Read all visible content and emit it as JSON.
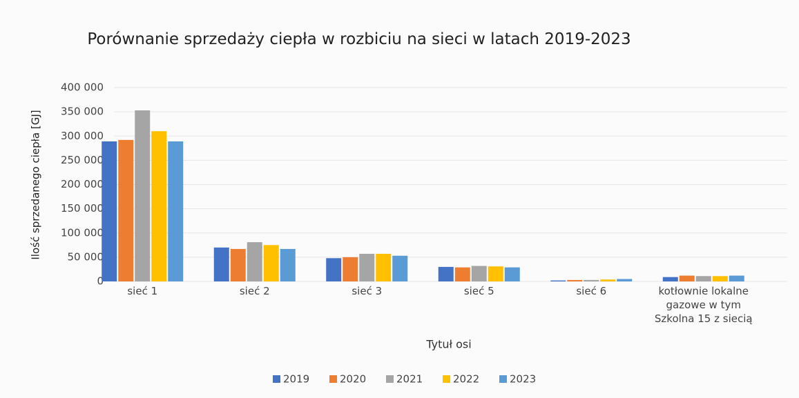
{
  "chart_data": {
    "type": "bar",
    "title": "Porównanie sprzedaży ciepła w rozbiciu na sieci w latach 2019-2023",
    "y_label": "Ilość sprzedanego ciepła [GJ]",
    "x_label": "Tytuł osi",
    "categories": [
      "sieć 1",
      "sieć 2",
      "sieć 3",
      "sieć 5",
      "sieć 6",
      "kotłownie lokalne gazowe w tym Szkolna 15 z siecią"
    ],
    "series": [
      {
        "name": "2019",
        "color": "#4472c4",
        "values": [
          289000,
          70000,
          48000,
          30000,
          2000,
          9000
        ]
      },
      {
        "name": "2020",
        "color": "#ed7d31",
        "values": [
          292000,
          67000,
          50000,
          29000,
          3000,
          12000
        ]
      },
      {
        "name": "2021",
        "color": "#a5a5a5",
        "values": [
          353000,
          81000,
          57000,
          32000,
          3000,
          11000
        ]
      },
      {
        "name": "2022",
        "color": "#ffc000",
        "values": [
          310000,
          75000,
          57000,
          31000,
          4000,
          11000
        ]
      },
      {
        "name": "2023",
        "color": "#5b9bd5",
        "values": [
          289000,
          67000,
          53000,
          29000,
          5000,
          12000
        ]
      }
    ],
    "ylim": [
      0,
      400000
    ],
    "yticks": [
      0,
      {
        "value": 50000,
        "label": "50 000"
      },
      {
        "value": 100000,
        "label": "100 000"
      },
      {
        "value": 150000,
        "label": "150 000"
      },
      {
        "value": 200000,
        "label": "200 000"
      },
      {
        "value": 250000,
        "label": "250 000"
      },
      {
        "value": 300000,
        "label": "300 000"
      },
      {
        "value": 350000,
        "label": "350 000"
      },
      {
        "value": 400000,
        "label": "400 000"
      }
    ],
    "grid": true,
    "legend": "bottom"
  }
}
